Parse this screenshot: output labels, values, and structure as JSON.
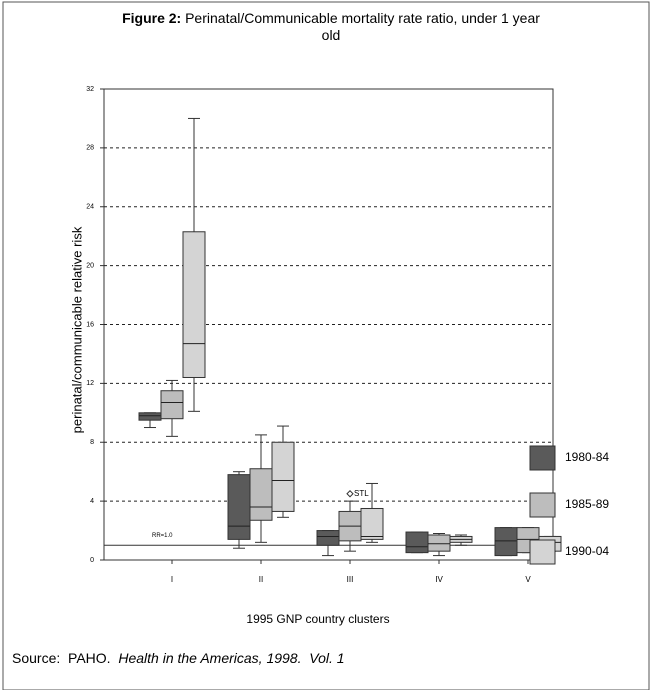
{
  "chart_data": {
    "type": "box",
    "title_prefix": "Figure 2:",
    "title": "Perinatal/Communicable mortality rate ratio, under 1 year old",
    "y_label": "perinatal/communicable relative risk",
    "x_label": "1995 GNP country clusters",
    "categories": [
      "I",
      "II",
      "III",
      "IV",
      "V"
    ],
    "ylim": [
      0,
      32
    ],
    "yticks": [
      0,
      4,
      8,
      12,
      16,
      20,
      24,
      28,
      32
    ],
    "grid": true,
    "legend": "right",
    "reference_line": {
      "value": 1,
      "label": "RR=1.0"
    },
    "series": [
      {
        "name": "1980-84",
        "color": "#5a5a5a",
        "boxes": [
          {
            "min": 9.0,
            "q1": 9.5,
            "median": 9.8,
            "q3": 10.0,
            "max": 10.0
          },
          {
            "min": 0.8,
            "q1": 1.4,
            "median": 2.3,
            "q3": 5.8,
            "max": 6.0
          },
          {
            "min": 0.3,
            "q1": 1.0,
            "median": 1.6,
            "q3": 2.0,
            "max": 2.0
          },
          {
            "min": 0.5,
            "q1": 0.5,
            "median": 0.9,
            "q3": 1.9,
            "max": 1.9
          },
          {
            "min": 0.3,
            "q1": 0.3,
            "median": 1.3,
            "q3": 2.2,
            "max": 2.2
          }
        ]
      },
      {
        "name": "1985-89",
        "color": "#bdbdbd",
        "boxes": [
          {
            "min": 8.4,
            "q1": 9.6,
            "median": 10.7,
            "q3": 11.5,
            "max": 12.2
          },
          {
            "min": 1.2,
            "q1": 2.7,
            "median": 3.6,
            "q3": 6.2,
            "max": 8.5
          },
          {
            "min": 0.6,
            "q1": 1.3,
            "median": 2.3,
            "q3": 3.3,
            "max": 4.0
          },
          {
            "min": 0.3,
            "q1": 0.6,
            "median": 1.1,
            "q3": 1.7,
            "max": 1.8
          },
          {
            "min": 0.5,
            "q1": 0.5,
            "median": 1.4,
            "q3": 2.2,
            "max": 2.2
          }
        ]
      },
      {
        "name": "1990-04",
        "color": "#d4d4d4",
        "boxes": [
          {
            "min": 10.1,
            "q1": 12.4,
            "median": 14.7,
            "q3": 22.3,
            "max": 30.0
          },
          {
            "min": 2.9,
            "q1": 3.3,
            "median": 5.4,
            "q3": 8.0,
            "max": 9.1
          },
          {
            "min": 1.2,
            "q1": 1.4,
            "median": 1.6,
            "q3": 3.5,
            "max": 5.2
          },
          {
            "min": 1.0,
            "q1": 1.2,
            "median": 1.4,
            "q3": 1.6,
            "max": 1.7
          },
          {
            "min": 0.6,
            "q1": 0.6,
            "median": 1.2,
            "q3": 1.6,
            "max": 1.6
          }
        ]
      }
    ],
    "outliers": [
      {
        "series": 1,
        "category": 2,
        "value": 4.5,
        "label": "STL"
      }
    ],
    "source_label": "Source:",
    "source_publisher": "PAHO.",
    "source_work": "Health in the Americas, 1998.",
    "source_volume": "Vol. 1"
  }
}
